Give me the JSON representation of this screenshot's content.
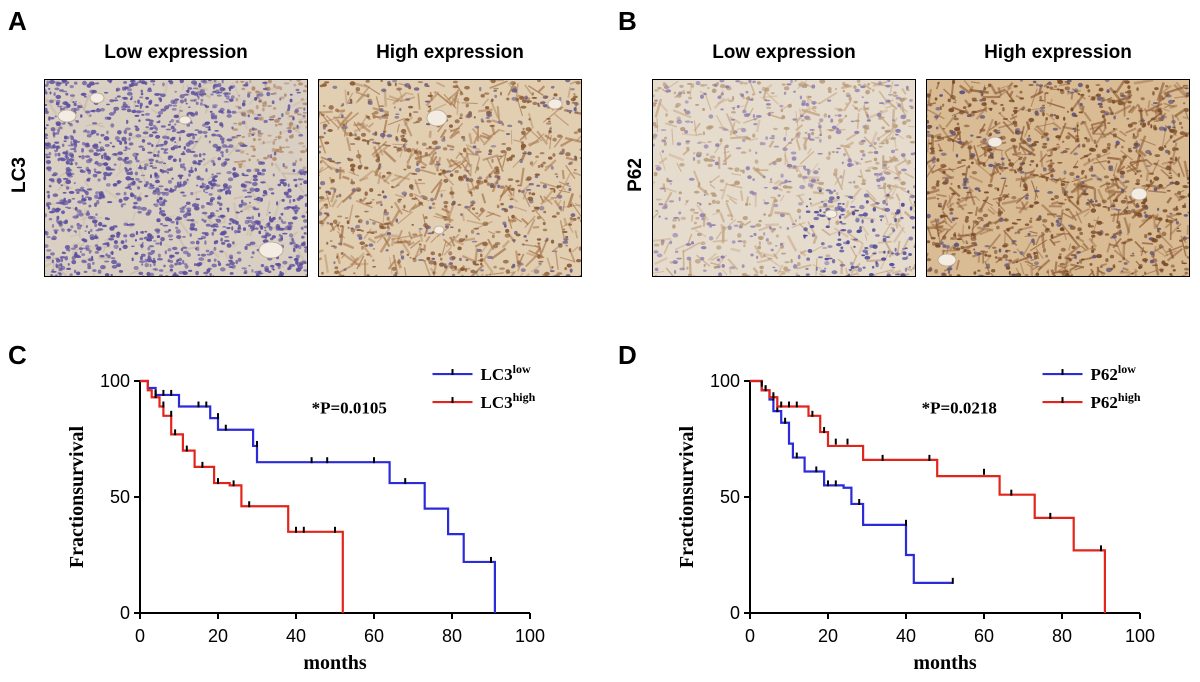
{
  "panels": {
    "A": {
      "letter": "A",
      "row_label": "LC3",
      "low_label": "Low expression",
      "high_label": "High expression"
    },
    "B": {
      "letter": "B",
      "row_label": "P62",
      "low_label": "Low expression",
      "high_label": "High expression"
    },
    "C": {
      "letter": "C"
    },
    "D": {
      "letter": "D"
    }
  },
  "colors": {
    "low_series": "#2b2bd9",
    "high_series": "#e3241b",
    "tissue_bg": "#e4d7c4",
    "hematoxylin": "#6b5aa6",
    "dab": "#a8784e"
  },
  "chart_data": [
    {
      "id": "C",
      "type": "line",
      "subtype": "kaplan-meier",
      "xlabel": "months",
      "ylabel": "Fractionsurvival",
      "xlim": [
        0,
        100
      ],
      "ylim": [
        0,
        100
      ],
      "xticks": [
        0,
        20,
        40,
        60,
        80,
        100
      ],
      "yticks": [
        0,
        50,
        100
      ],
      "annotation": "*P=0.0105",
      "legend_position": "top-right",
      "series": [
        {
          "name_base": "LC3",
          "name_sup": "low",
          "color": "#2b2bd9",
          "steps": [
            [
              0,
              100
            ],
            [
              2,
              97
            ],
            [
              4,
              94
            ],
            [
              10,
              89
            ],
            [
              18,
              84
            ],
            [
              20,
              79
            ],
            [
              29,
              72
            ],
            [
              30,
              65
            ],
            [
              64,
              56
            ],
            [
              73,
              45
            ],
            [
              79,
              34
            ],
            [
              83,
              22
            ],
            [
              91,
              0
            ]
          ],
          "censors": [
            [
              4,
              94
            ],
            [
              6,
              94
            ],
            [
              8,
              94
            ],
            [
              15,
              89
            ],
            [
              17,
              89
            ],
            [
              20,
              84
            ],
            [
              22,
              79
            ],
            [
              30,
              72
            ],
            [
              44,
              65
            ],
            [
              48,
              65
            ],
            [
              60,
              65
            ],
            [
              68,
              56
            ],
            [
              90,
              22
            ]
          ]
        },
        {
          "name_base": "LC3",
          "name_sup": "high",
          "color": "#e3241b",
          "steps": [
            [
              0,
              100
            ],
            [
              2,
              96
            ],
            [
              3,
              93
            ],
            [
              5,
              89
            ],
            [
              6,
              85
            ],
            [
              8,
              77
            ],
            [
              11,
              70
            ],
            [
              14,
              63
            ],
            [
              19,
              56
            ],
            [
              23,
              55
            ],
            [
              26,
              46
            ],
            [
              38,
              35
            ],
            [
              52,
              0
            ]
          ],
          "censors": [
            [
              4,
              93
            ],
            [
              6,
              89
            ],
            [
              8,
              85
            ],
            [
              9,
              77
            ],
            [
              12,
              70
            ],
            [
              16,
              63
            ],
            [
              20,
              56
            ],
            [
              24,
              55
            ],
            [
              28,
              46
            ],
            [
              40,
              35
            ],
            [
              42,
              35
            ],
            [
              50,
              35
            ]
          ]
        }
      ]
    },
    {
      "id": "D",
      "type": "line",
      "subtype": "kaplan-meier",
      "xlabel": "months",
      "ylabel": "Fractionsurvival",
      "xlim": [
        0,
        100
      ],
      "ylim": [
        0,
        100
      ],
      "xticks": [
        0,
        20,
        40,
        60,
        80,
        100
      ],
      "yticks": [
        0,
        50,
        100
      ],
      "annotation": "*P=0.0218",
      "legend_position": "top-right",
      "series": [
        {
          "name_base": "P62",
          "name_sup": "low",
          "color": "#2b2bd9",
          "steps": [
            [
              0,
              100
            ],
            [
              3,
              96
            ],
            [
              5,
              92
            ],
            [
              6,
              87
            ],
            [
              8,
              82
            ],
            [
              10,
              73
            ],
            [
              11,
              67
            ],
            [
              14,
              61
            ],
            [
              19,
              55
            ],
            [
              24,
              54
            ],
            [
              26,
              47
            ],
            [
              29,
              38
            ],
            [
              40,
              25
            ],
            [
              42,
              13
            ],
            [
              52,
              13
            ]
          ],
          "censors": [
            [
              3,
              98
            ],
            [
              4,
              96
            ],
            [
              6,
              92
            ],
            [
              7,
              87
            ],
            [
              9,
              82
            ],
            [
              12,
              67
            ],
            [
              17,
              61
            ],
            [
              20,
              55
            ],
            [
              22,
              55
            ],
            [
              28,
              47
            ],
            [
              40,
              38
            ],
            [
              52,
              13
            ]
          ]
        },
        {
          "name_base": "P62",
          "name_sup": "high",
          "color": "#e3241b",
          "steps": [
            [
              0,
              100
            ],
            [
              3,
              96
            ],
            [
              5,
              93
            ],
            [
              7,
              89
            ],
            [
              15,
              85
            ],
            [
              18,
              78
            ],
            [
              20,
              72
            ],
            [
              29,
              66
            ],
            [
              48,
              59
            ],
            [
              64,
              51
            ],
            [
              73,
              41
            ],
            [
              83,
              27
            ],
            [
              91,
              0
            ]
          ],
          "censors": [
            [
              3,
              98
            ],
            [
              4,
              96
            ],
            [
              6,
              93
            ],
            [
              8,
              89
            ],
            [
              10,
              89
            ],
            [
              12,
              89
            ],
            [
              16,
              85
            ],
            [
              19,
              78
            ],
            [
              22,
              73
            ],
            [
              25,
              73
            ],
            [
              34,
              66
            ],
            [
              46,
              66
            ],
            [
              60,
              60
            ],
            [
              67,
              51
            ],
            [
              77,
              41
            ],
            [
              90,
              27
            ]
          ]
        }
      ]
    }
  ]
}
